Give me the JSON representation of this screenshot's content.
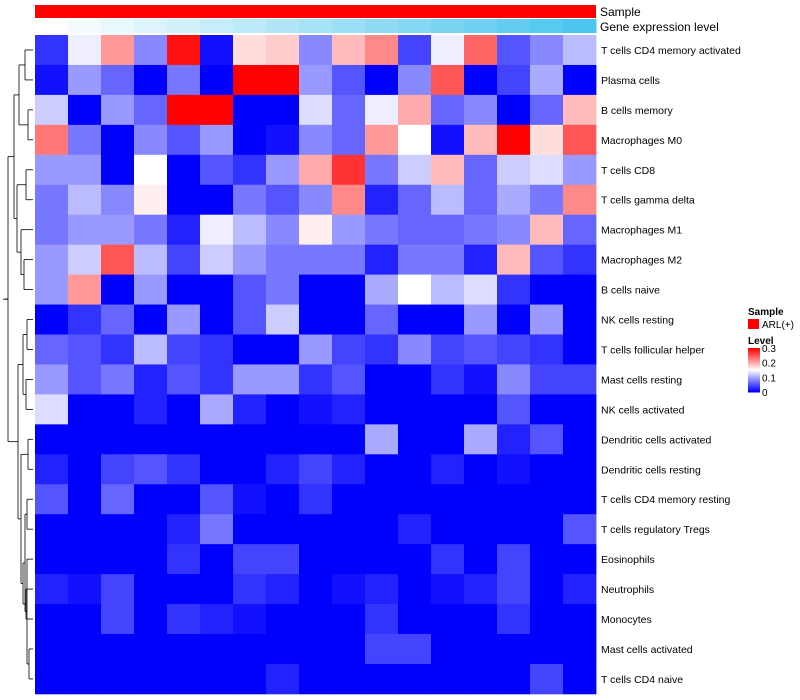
{
  "chart_data": {
    "type": "heatmap",
    "annotations": [
      {
        "name": "Sample",
        "color": "#ff0000"
      },
      {
        "name": "Gene expression level",
        "gradient": [
          "#ffffff",
          "#4cc6ee"
        ]
      }
    ],
    "rows": [
      "T cells CD4 memory activated",
      "Plasma cells",
      "B cells memory",
      "Macrophages M0",
      "T cells CD8",
      "T cells gamma delta",
      "Macrophages M1",
      "Macrophages M2",
      "B cells naive",
      "NK cells resting",
      "T cells follicular helper",
      "Mast cells resting",
      "NK cells activated",
      "Dendritic cells activated",
      "Dendritic cells resting",
      "T cells CD4 memory resting",
      "T cells regulatory  Tregs",
      "Eosinophils",
      "Neutrophils",
      "Monocytes",
      "Mast cells activated",
      "T cells CD4 naive"
    ],
    "n_columns": 17,
    "values": [
      [
        0.03,
        0.14,
        0.21,
        0.08,
        0.29,
        0.01,
        0.17,
        0.18,
        0.08,
        0.19,
        0.22,
        0.04,
        0.14,
        0.24,
        0.05,
        0.08,
        0.11
      ],
      [
        0.01,
        0.09,
        0.06,
        0.0,
        0.07,
        0.0,
        0.3,
        0.3,
        0.09,
        0.05,
        0.0,
        0.08,
        0.25,
        0.0,
        0.04,
        0.1,
        0.0
      ],
      [
        0.12,
        0.0,
        0.09,
        0.06,
        0.3,
        0.3,
        0.0,
        0.0,
        0.13,
        0.06,
        0.14,
        0.2,
        0.06,
        0.08,
        0.0,
        0.06,
        0.19
      ],
      [
        0.23,
        0.07,
        0.0,
        0.08,
        0.05,
        0.09,
        0.0,
        0.01,
        0.08,
        0.06,
        0.21,
        0.15,
        0.01,
        0.19,
        0.3,
        0.17,
        0.25
      ],
      [
        0.09,
        0.09,
        0.0,
        0.15,
        0.0,
        0.05,
        0.03,
        0.09,
        0.2,
        0.27,
        0.07,
        0.12,
        0.19,
        0.06,
        0.12,
        0.13,
        0.09
      ],
      [
        0.07,
        0.11,
        0.08,
        0.16,
        0.0,
        0.0,
        0.07,
        0.05,
        0.08,
        0.22,
        0.02,
        0.06,
        0.11,
        0.06,
        0.1,
        0.07,
        0.22
      ],
      [
        0.07,
        0.09,
        0.09,
        0.07,
        0.02,
        0.14,
        0.11,
        0.08,
        0.16,
        0.09,
        0.07,
        0.06,
        0.06,
        0.07,
        0.08,
        0.19,
        0.06
      ],
      [
        0.09,
        0.12,
        0.25,
        0.11,
        0.04,
        0.12,
        0.09,
        0.07,
        0.07,
        0.07,
        0.02,
        0.07,
        0.07,
        0.02,
        0.19,
        0.05,
        0.03
      ],
      [
        0.09,
        0.21,
        0.0,
        0.09,
        0.0,
        0.0,
        0.05,
        0.07,
        0.0,
        0.0,
        0.1,
        0.15,
        0.11,
        0.13,
        0.03,
        0.0,
        0.0
      ],
      [
        0.0,
        0.03,
        0.06,
        0.0,
        0.09,
        0.0,
        0.05,
        0.12,
        0.0,
        0.0,
        0.06,
        0.0,
        0.0,
        0.09,
        0.0,
        0.09,
        0.0
      ],
      [
        0.06,
        0.05,
        0.03,
        0.11,
        0.04,
        0.03,
        0.0,
        0.0,
        0.09,
        0.04,
        0.03,
        0.08,
        0.04,
        0.05,
        0.04,
        0.03,
        0.0
      ],
      [
        0.09,
        0.05,
        0.07,
        0.02,
        0.05,
        0.03,
        0.09,
        0.09,
        0.03,
        0.05,
        0.0,
        0.0,
        0.03,
        0.01,
        0.08,
        0.04,
        0.04
      ],
      [
        0.13,
        0.0,
        0.0,
        0.02,
        0.0,
        0.1,
        0.02,
        0.0,
        0.01,
        0.02,
        0.0,
        0.0,
        0.0,
        0.0,
        0.05,
        0.0,
        0.0
      ],
      [
        0.0,
        0.0,
        0.0,
        0.0,
        0.0,
        0.0,
        0.0,
        0.0,
        0.0,
        0.0,
        0.1,
        0.0,
        0.0,
        0.1,
        0.02,
        0.05,
        0.0
      ],
      [
        0.02,
        0.0,
        0.04,
        0.05,
        0.03,
        0.0,
        0.0,
        0.02,
        0.04,
        0.02,
        0.0,
        0.0,
        0.02,
        0.0,
        0.01,
        0.0,
        0.0
      ],
      [
        0.05,
        0.0,
        0.06,
        0.0,
        0.0,
        0.05,
        0.01,
        0.0,
        0.03,
        0.0,
        0.0,
        0.0,
        0.0,
        0.0,
        0.0,
        0.0,
        0.0
      ],
      [
        0.0,
        0.0,
        0.0,
        0.0,
        0.02,
        0.07,
        0.0,
        0.0,
        0.0,
        0.0,
        0.0,
        0.02,
        0.0,
        0.0,
        0.0,
        0.0,
        0.05
      ],
      [
        0.0,
        0.0,
        0.0,
        0.0,
        0.03,
        0.0,
        0.04,
        0.04,
        0.0,
        0.0,
        0.0,
        0.0,
        0.03,
        0.0,
        0.04,
        0.0,
        0.0
      ],
      [
        0.02,
        0.01,
        0.04,
        0.0,
        0.0,
        0.0,
        0.03,
        0.02,
        0.0,
        0.01,
        0.02,
        0.0,
        0.01,
        0.02,
        0.04,
        0.0,
        0.02
      ],
      [
        0.0,
        0.0,
        0.04,
        0.0,
        0.03,
        0.02,
        0.01,
        0.0,
        0.0,
        0.0,
        0.03,
        0.0,
        0.0,
        0.0,
        0.03,
        0.0,
        0.0
      ],
      [
        0.0,
        0.0,
        0.0,
        0.0,
        0.0,
        0.0,
        0.0,
        0.0,
        0.0,
        0.0,
        0.04,
        0.04,
        0.0,
        0.0,
        0.0,
        0.0,
        0.0
      ],
      [
        0.0,
        0.0,
        0.0,
        0.0,
        0.0,
        0.0,
        0.0,
        0.02,
        0.0,
        0.0,
        0.0,
        0.0,
        0.0,
        0.0,
        0.0,
        0.04,
        0.0
      ]
    ],
    "color_scale": {
      "min": 0,
      "max": 0.3,
      "low": "#0000ff",
      "mid": "#ffffff",
      "high": "#ff0000",
      "mid_value": 0.15
    },
    "legend": {
      "sample_title": "Sample",
      "sample_item": "ARL(+)",
      "level_title": "Level",
      "level_ticks": [
        "0.3",
        "0.2",
        "0.1",
        "0"
      ]
    },
    "dendrogram": "row clustering tree on left"
  }
}
